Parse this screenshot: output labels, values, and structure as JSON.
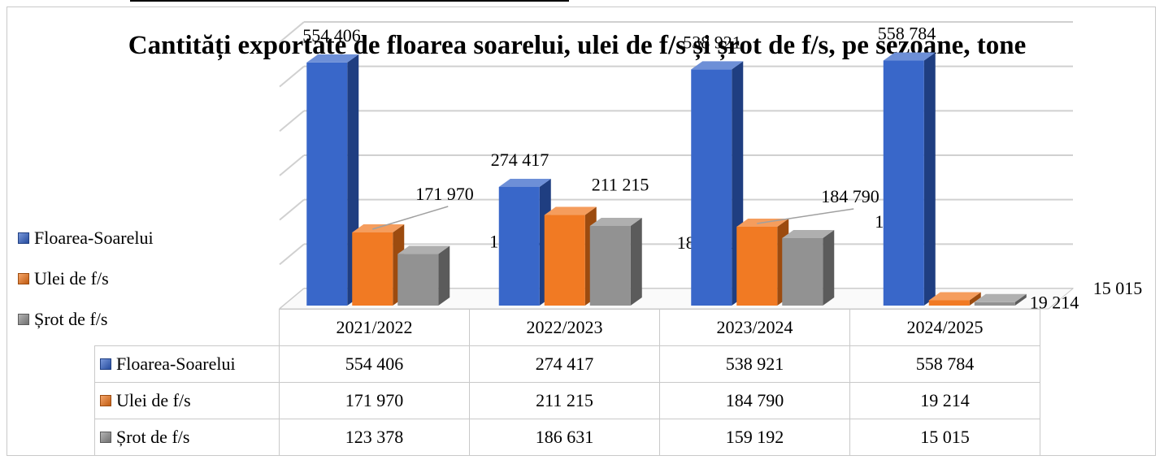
{
  "chart_data": {
    "type": "bar",
    "title": "Cantități exportate de floarea soarelui, ulei de f/s și șrot de f/s, pe sezoane, tone",
    "categories": [
      "2021/2022",
      "2022/2023",
      "2023/2024",
      "2024/2025"
    ],
    "series": [
      {
        "name": "Floarea-Soarelui",
        "color": "#2f5fc6",
        "values": [
          554406,
          274417,
          538921,
          558784
        ],
        "labels": [
          "554 406",
          "274 417",
          "538 921",
          "558 784"
        ]
      },
      {
        "name": "Ulei de f/s",
        "color": "#f07317",
        "values": [
          171970,
          211215,
          184790,
          19214
        ],
        "labels": [
          "171 970",
          "211 215",
          "184 790",
          "19 214"
        ]
      },
      {
        "name": "Șrot de f/s",
        "color": "#8c8c8c",
        "values": [
          123378,
          186631,
          159192,
          15015
        ],
        "labels": [
          "123 378",
          "186 631",
          "159 192",
          "15 015"
        ]
      }
    ],
    "ylim": [
      0,
      600000
    ],
    "grid": true,
    "legend": "left",
    "data_table": true
  }
}
